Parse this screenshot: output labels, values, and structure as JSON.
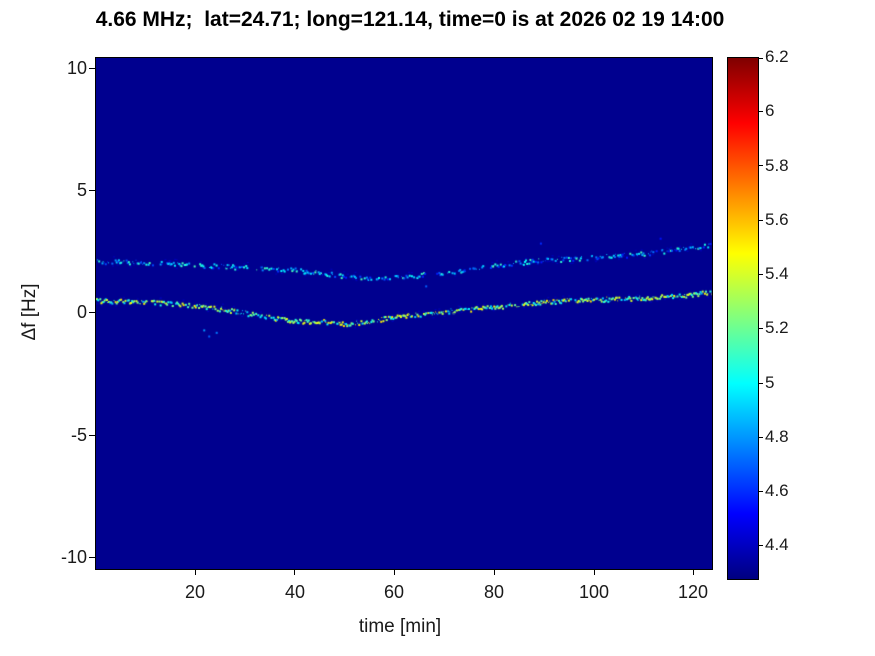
{
  "chart_data": {
    "type": "heatmap",
    "title": "4.66 MHz;  lat=24.71; long=121.14, time=0 is at 2026 02 19 14:00",
    "xlabel": "time [min]",
    "ylabel": "Δf [Hz]",
    "xlim": [
      0,
      123.5
    ],
    "ylim": [
      -10.45,
      10.45
    ],
    "x_ticks": [
      20,
      40,
      60,
      80,
      100,
      120
    ],
    "y_ticks": [
      10,
      5,
      0,
      -5,
      -10
    ],
    "grid": false,
    "background_value": 4.3,
    "background_color": "#00008f",
    "colorbar": {
      "colormap": "jet",
      "min": 4.28,
      "max": 6.2,
      "ticks": [
        6.2,
        6,
        5.8,
        5.6,
        5.4,
        5.2,
        5,
        4.8,
        4.6,
        4.4
      ]
    },
    "series": [
      {
        "name": "upper-doppler-trace",
        "x": [
          0,
          10,
          20,
          30,
          40,
          48,
          55,
          60,
          68,
          75,
          82,
          90,
          98,
          106,
          114,
          123
        ],
        "y": [
          2.15,
          2.1,
          2.0,
          1.9,
          1.8,
          1.6,
          1.45,
          1.5,
          1.65,
          1.85,
          2.05,
          2.2,
          2.3,
          2.4,
          2.55,
          2.8
        ],
        "value_range": [
          4.55,
          5.15
        ],
        "density": 0.6
      },
      {
        "name": "lower-doppler-trace",
        "x": [
          0,
          10,
          20,
          28,
          35,
          40,
          45,
          50,
          55,
          60,
          65,
          72,
          80,
          88,
          95,
          102,
          110,
          117,
          123
        ],
        "y": [
          0.55,
          0.5,
          0.35,
          0.1,
          -0.15,
          -0.3,
          -0.3,
          -0.4,
          -0.3,
          -0.1,
          0.0,
          0.15,
          0.3,
          0.45,
          0.55,
          0.6,
          0.65,
          0.75,
          0.9
        ],
        "value_range": [
          4.85,
          5.55
        ],
        "density": 0.88
      }
    ],
    "stray_speckles": [
      {
        "x": 21.5,
        "y": -0.65,
        "value": 4.8
      },
      {
        "x": 22.5,
        "y": -0.9,
        "value": 4.7
      },
      {
        "x": 24.0,
        "y": -0.75,
        "value": 4.75
      },
      {
        "x": 66.0,
        "y": 1.15,
        "value": 4.7
      },
      {
        "x": 89.0,
        "y": 2.9,
        "value": 4.6
      },
      {
        "x": 113.0,
        "y": 3.1,
        "value": 4.55
      }
    ]
  }
}
